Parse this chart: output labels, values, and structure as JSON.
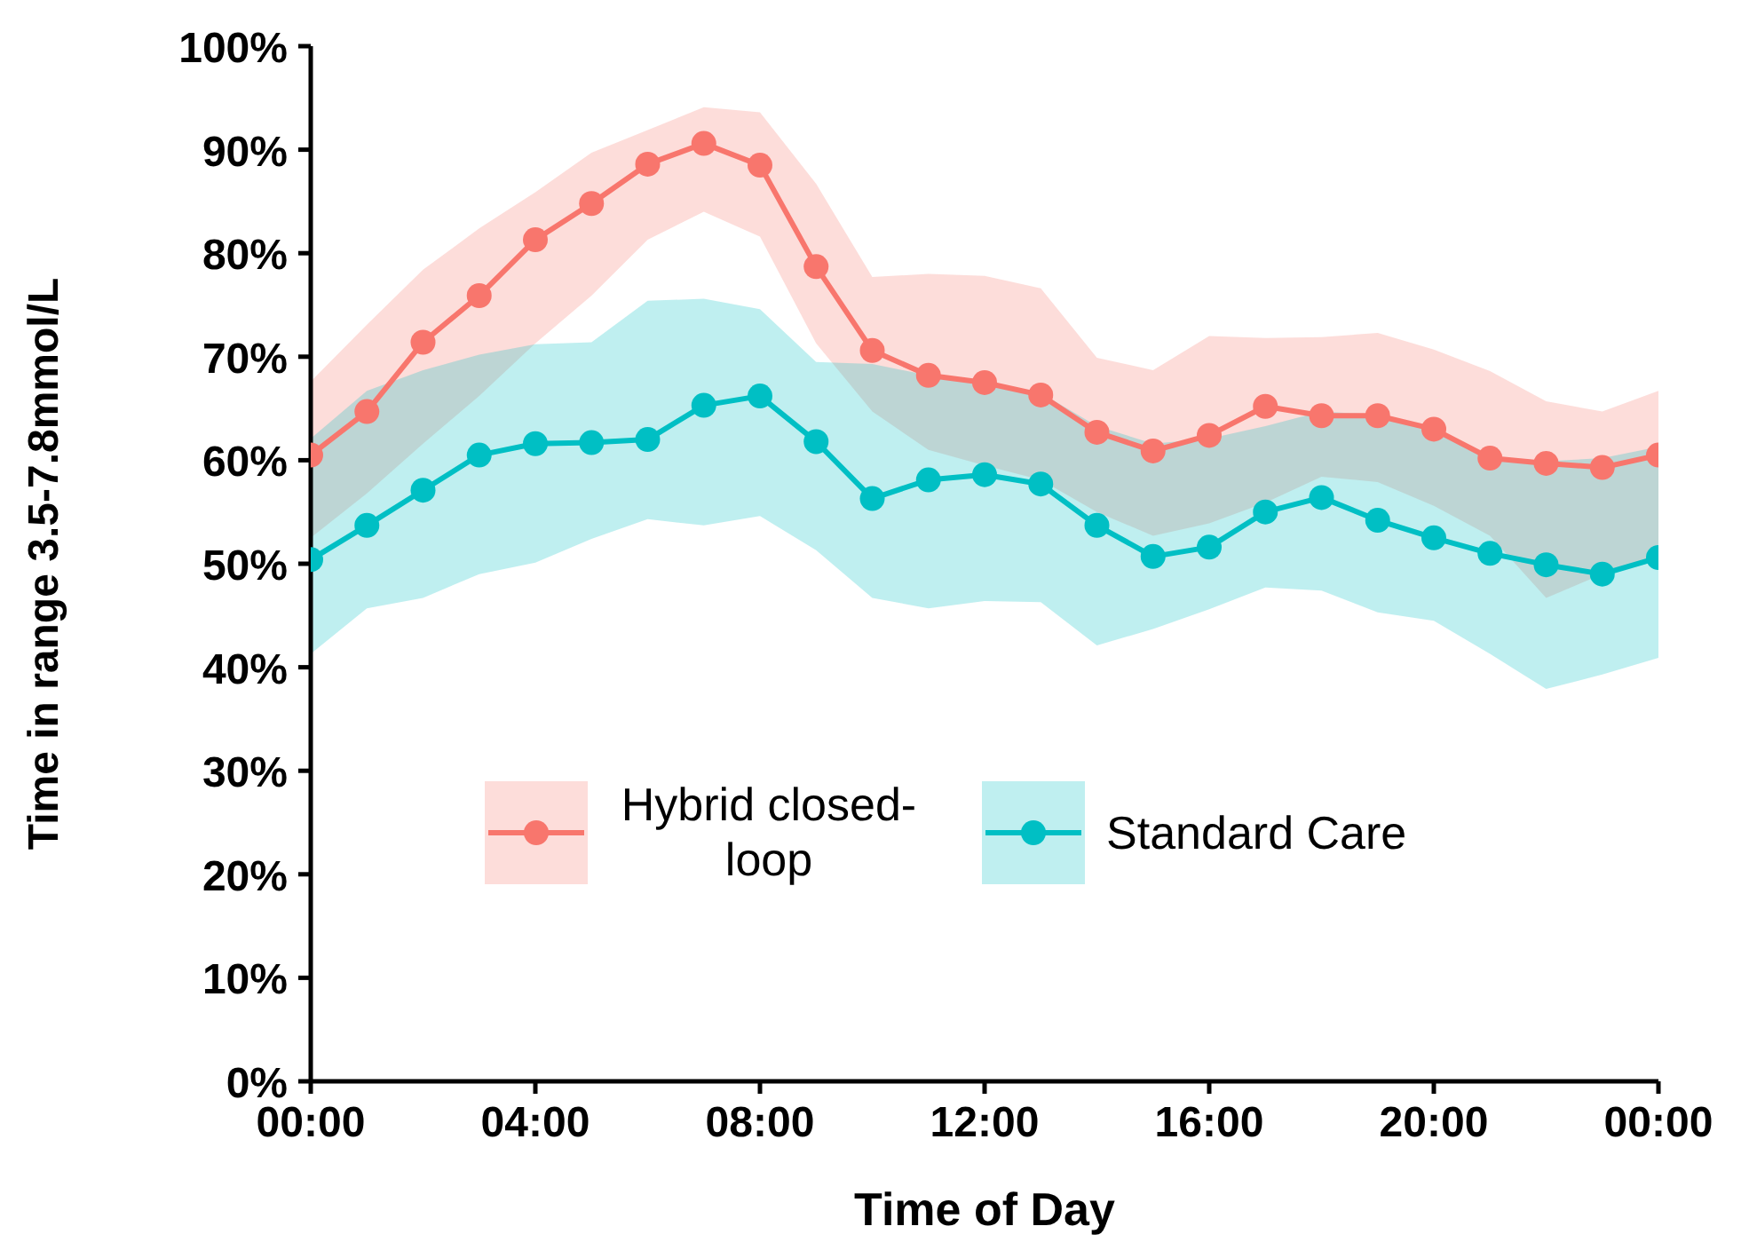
{
  "chart_data": {
    "type": "line",
    "xlabel": "Time of Day",
    "ylabel": "Time in range 3.5-7.8mmol/L",
    "x": [
      0,
      1,
      2,
      3,
      4,
      5,
      6,
      7,
      8,
      9,
      10,
      11,
      12,
      13,
      14,
      15,
      16,
      17,
      18,
      19,
      20,
      21,
      22,
      23,
      24
    ],
    "series": [
      {
        "name": "Hybrid closed-loop",
        "color": "#f8766d",
        "values": [
          60.5,
          64.7,
          71.4,
          75.9,
          81.3,
          84.8,
          88.6,
          90.6,
          88.5,
          78.7,
          70.6,
          68.2,
          67.5,
          66.3,
          62.7,
          60.9,
          62.4,
          65.2,
          64.3,
          64.3,
          63.0,
          60.2,
          59.7,
          59.3,
          60.5
        ],
        "lower": [
          52.5,
          56.8,
          61.6,
          66.2,
          71.3,
          75.9,
          81.3,
          84.0,
          81.6,
          71.3,
          64.7,
          61.0,
          59.5,
          58.1,
          55.0,
          52.7,
          53.9,
          55.9,
          58.4,
          57.9,
          55.6,
          52.7,
          46.7,
          49.0,
          50.4
        ],
        "upper": [
          67.6,
          73.1,
          78.4,
          82.4,
          85.9,
          89.7,
          91.9,
          94.1,
          93.6,
          86.7,
          77.7,
          78.0,
          77.8,
          76.6,
          69.9,
          68.7,
          72.0,
          71.8,
          71.9,
          72.3,
          70.7,
          68.6,
          65.7,
          64.7,
          66.7
        ]
      },
      {
        "name": "Standard Care",
        "color": "#00bfc4",
        "values": [
          50.4,
          53.7,
          57.1,
          60.5,
          61.6,
          61.7,
          62.0,
          65.3,
          66.2,
          61.8,
          56.3,
          58.1,
          58.6,
          57.7,
          53.7,
          50.7,
          51.6,
          55.0,
          56.4,
          54.2,
          52.5,
          51.0,
          49.9,
          49.0,
          50.6
        ],
        "lower": [
          41.3,
          45.7,
          46.7,
          49.0,
          50.1,
          52.4,
          54.3,
          53.7,
          54.6,
          51.3,
          46.7,
          45.7,
          46.4,
          46.3,
          42.1,
          43.7,
          45.6,
          47.7,
          47.4,
          45.3,
          44.5,
          41.3,
          37.9,
          39.3,
          40.9
        ],
        "upper": [
          62.1,
          66.7,
          68.7,
          70.2,
          71.2,
          71.4,
          75.4,
          75.6,
          74.6,
          69.5,
          69.3,
          68.2,
          67.2,
          66.5,
          63.3,
          61.6,
          62.1,
          63.3,
          64.7,
          64.4,
          63.0,
          60.4,
          59.9,
          60.2,
          61.3
        ]
      }
    ],
    "xlim": [
      0,
      24
    ],
    "xticks": [
      {
        "value": 0,
        "label": "00:00"
      },
      {
        "value": 4,
        "label": "04:00"
      },
      {
        "value": 8,
        "label": "08:00"
      },
      {
        "value": 12,
        "label": "12:00"
      },
      {
        "value": 16,
        "label": "16:00"
      },
      {
        "value": 20,
        "label": "20:00"
      },
      {
        "value": 24,
        "label": "00:00"
      }
    ],
    "ylim": [
      0,
      100
    ],
    "yticks": [
      {
        "value": 0,
        "label": "0%"
      },
      {
        "value": 10,
        "label": "10%"
      },
      {
        "value": 20,
        "label": "20%"
      },
      {
        "value": 30,
        "label": "30%"
      },
      {
        "value": 40,
        "label": "40%"
      },
      {
        "value": 50,
        "label": "50%"
      },
      {
        "value": 60,
        "label": "60%"
      },
      {
        "value": 70,
        "label": "70%"
      },
      {
        "value": 80,
        "label": "80%"
      },
      {
        "value": 90,
        "label": "90%"
      },
      {
        "value": 100,
        "label": "100%"
      }
    ],
    "grid": false,
    "legend": "bottom",
    "marker": "circle",
    "line_style": "solid"
  }
}
